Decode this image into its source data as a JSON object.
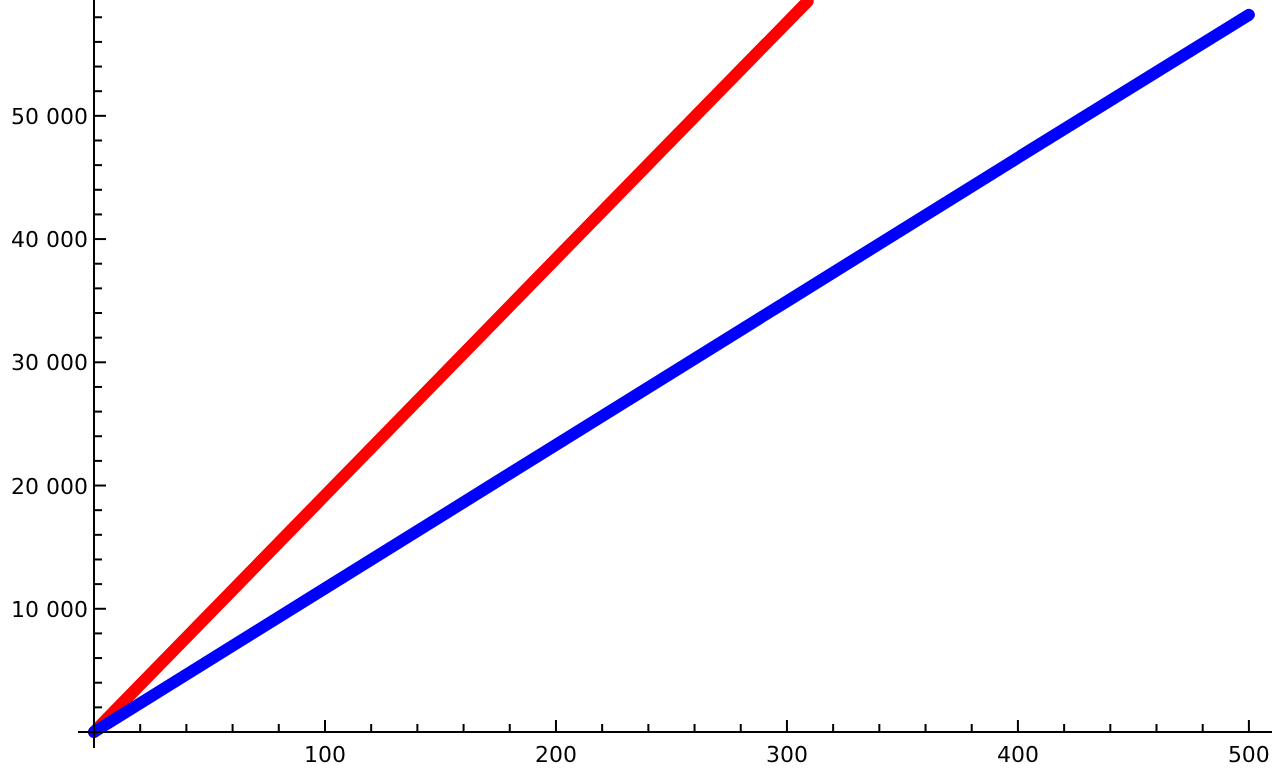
{
  "chart_data": {
    "type": "line",
    "xlim": [
      0,
      510
    ],
    "ylim": [
      0,
      59400
    ],
    "xticks": [
      {
        "value": 0,
        "label": null
      },
      {
        "value": 20,
        "label": null
      },
      {
        "value": 40,
        "label": null
      },
      {
        "value": 60,
        "label": null
      },
      {
        "value": 80,
        "label": null
      },
      100,
      {
        "value": 120,
        "label": null
      },
      {
        "value": 140,
        "label": null
      },
      {
        "value": 160,
        "label": null
      },
      {
        "value": 180,
        "label": null
      },
      200,
      {
        "value": 220,
        "label": null
      },
      {
        "value": 240,
        "label": null
      },
      {
        "value": 260,
        "label": null
      },
      {
        "value": 280,
        "label": null
      },
      300,
      {
        "value": 320,
        "label": null
      },
      {
        "value": 340,
        "label": null
      },
      {
        "value": 360,
        "label": null
      },
      {
        "value": 380,
        "label": null
      },
      400,
      {
        "value": 420,
        "label": null
      },
      {
        "value": 440,
        "label": null
      },
      {
        "value": 460,
        "label": null
      },
      {
        "value": 480,
        "label": null
      },
      500
    ],
    "yticks": [
      {
        "value": 0,
        "label": null
      },
      {
        "value": 2000,
        "label": null
      },
      {
        "value": 4000,
        "label": null
      },
      {
        "value": 6000,
        "label": null
      },
      {
        "value": 8000,
        "label": null
      },
      {
        "value": 10000,
        "label": "10 000"
      },
      {
        "value": 12000,
        "label": null
      },
      {
        "value": 14000,
        "label": null
      },
      {
        "value": 16000,
        "label": null
      },
      {
        "value": 18000,
        "label": null
      },
      {
        "value": 20000,
        "label": "20 000"
      },
      {
        "value": 22000,
        "label": null
      },
      {
        "value": 24000,
        "label": null
      },
      {
        "value": 26000,
        "label": null
      },
      {
        "value": 28000,
        "label": null
      },
      {
        "value": 30000,
        "label": "30 000"
      },
      {
        "value": 32000,
        "label": null
      },
      {
        "value": 34000,
        "label": null
      },
      {
        "value": 36000,
        "label": null
      },
      {
        "value": 38000,
        "label": null
      },
      {
        "value": 40000,
        "label": "40 000"
      },
      {
        "value": 42000,
        "label": null
      },
      {
        "value": 44000,
        "label": null
      },
      {
        "value": 46000,
        "label": null
      },
      {
        "value": 48000,
        "label": null
      },
      {
        "value": 50000,
        "label": "50 000"
      },
      {
        "value": 52000,
        "label": null
      },
      {
        "value": 54000,
        "label": null
      },
      {
        "value": 56000,
        "label": null
      },
      {
        "value": 58000,
        "label": null
      }
    ],
    "grid": false,
    "marker": "none",
    "line_style": "solid",
    "series": [
      {
        "color": "#ff0000",
        "x": [
          0,
          50,
          100,
          150,
          200,
          250,
          309
        ],
        "values": [
          0,
          9600,
          19200,
          28800,
          38400,
          48000,
          59300
        ]
      },
      {
        "color": "#0000ff",
        "x": [
          0,
          100,
          200,
          300,
          400,
          500
        ],
        "values": [
          0,
          11650,
          23300,
          34950,
          46600,
          58200
        ]
      }
    ]
  }
}
